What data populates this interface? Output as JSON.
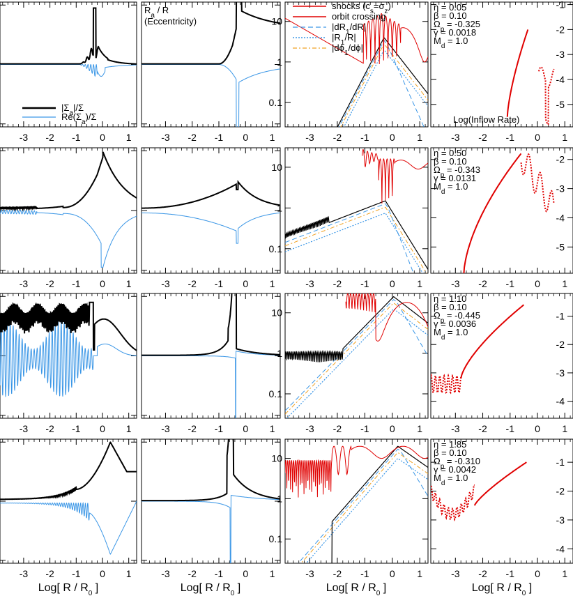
{
  "figure": {
    "xlabel_main": "Log[ R / R",
    "xlabel_sub": "0",
    "xlabel_close": " ]"
  },
  "colors": {
    "black": "#000000",
    "blue": "#3a96e6",
    "red": "#e00000",
    "orange": "#f0a020"
  },
  "chart_data": {
    "type": "line",
    "x_range": [
      -3.9,
      1.3
    ],
    "x_ticks": [
      "-3",
      "-2",
      "-1",
      "0",
      "1"
    ],
    "col1_y_ticks": [
      "1",
      "0",
      "-1"
    ],
    "col3_y_ticks": [
      "10",
      "1",
      "0.1"
    ],
    "col4_y_ticks_row1": [
      "-1",
      "-2",
      "-3",
      "-4",
      "-5"
    ],
    "col4_y_ticks_row2": [
      "-2",
      "-3",
      "-4",
      "-5"
    ],
    "col4_y_ticks_row3": [
      "-1",
      "-2",
      "-3",
      "-4"
    ],
    "col4_y_ticks_row4": [
      "-1",
      "-2",
      "-3",
      "-4"
    ],
    "legend_col1": {
      "s1": "|Σ",
      "s1sub": "a",
      "s1tail": "|/Σ",
      "s2": "Re(Σ",
      "s2sub": "a",
      "s2tail": ")/Σ"
    },
    "label_col2": {
      "l1": "R",
      "l1sub": "a",
      "l1tail": " / R",
      "l2": "(Eccentricity)"
    },
    "legend_col3": {
      "shocks": "shocks (c",
      "shocks_s": "s",
      "shocks_mid": "=σ",
      "shocks_z": "z",
      "shocks_end": ")",
      "orbit": "orbit crossing",
      "drdr": "|dR",
      "drdr_sub": "1",
      "drdr_mid": "/dR|",
      "r1r": "|R",
      "r1r_sub": "1",
      "r1r_end": "/R|",
      "dphi": "|dϕ",
      "dphi_sub": "1",
      "dphi_end": "/dϕ|"
    },
    "label_col4": "Log(Inflow Rate)",
    "param_labels": {
      "eta": "η =",
      "beta": "β =",
      "omega": "Ω",
      "omega_sub": "p",
      "omega_eq": " =",
      "gamma": "γ =",
      "md": "M",
      "md_sub": "d",
      "md_eq": " ="
    },
    "rows": [
      {
        "eta": "0.05",
        "beta": "0.10",
        "omega": "-0.325",
        "gamma": "0.0018",
        "md": "1.0"
      },
      {
        "eta": "0.50",
        "beta": "0.10",
        "omega": "-0.343",
        "gamma": "0.0131",
        "md": "1.0"
      },
      {
        "eta": "1.10",
        "beta": "0.10",
        "omega": "-0.445",
        "gamma": "0.0036",
        "md": "1.0"
      },
      {
        "eta": "1.85",
        "beta": "0.10",
        "omega": "-0.310",
        "gamma": "0.0042",
        "md": "1.0"
      }
    ]
  }
}
